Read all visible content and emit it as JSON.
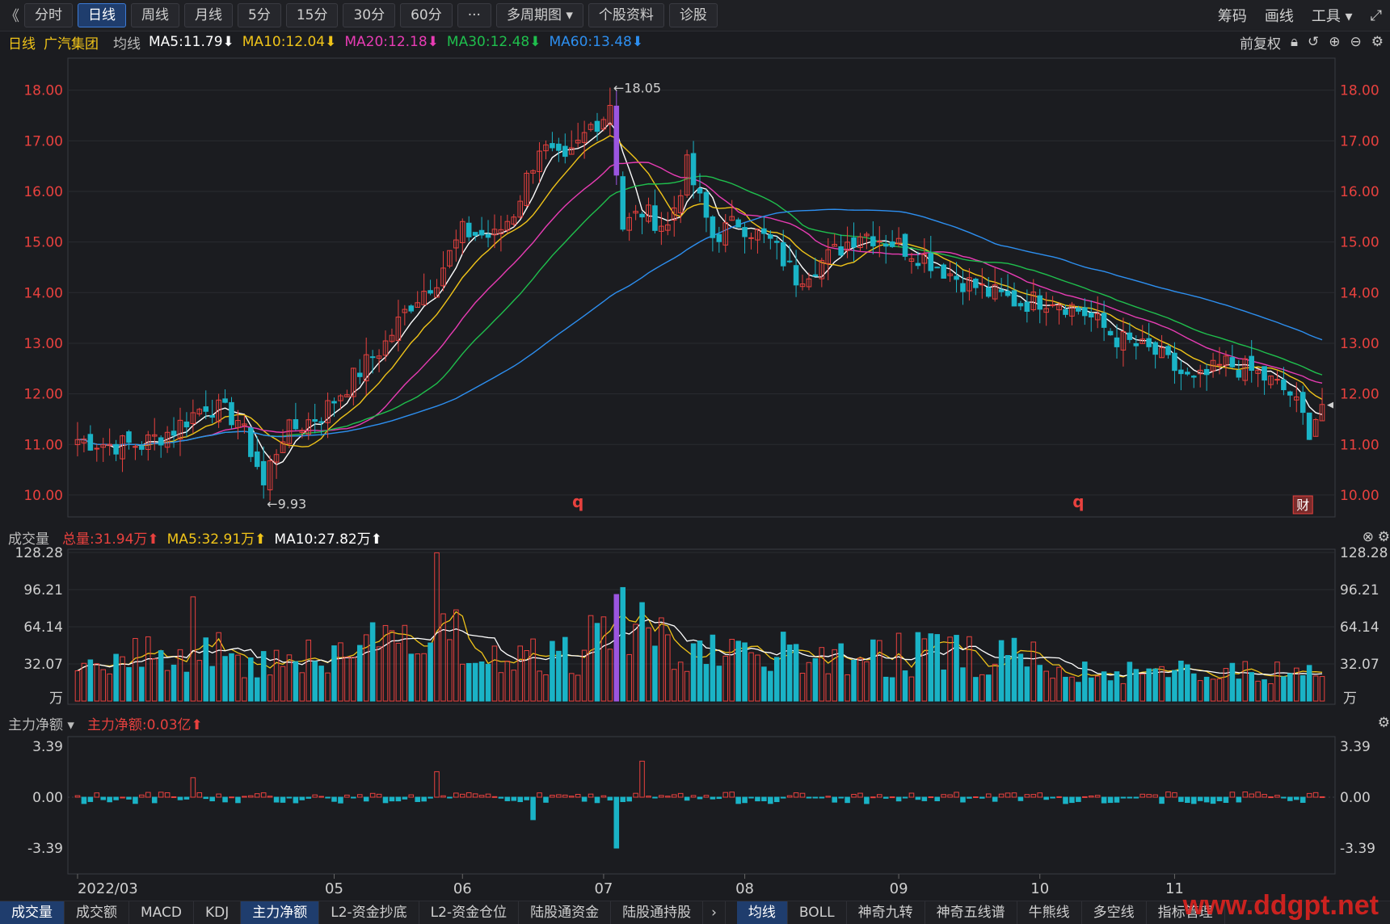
{
  "toolbar": {
    "back": "《",
    "items": [
      "分时",
      "日线",
      "周线",
      "月线",
      "5分",
      "15分",
      "30分",
      "60分",
      "···",
      "多周期图 ▾",
      "个股资料",
      "诊股"
    ],
    "active_index": 1,
    "right": [
      "筹码",
      "画线",
      "工具 ▾",
      "⤢"
    ]
  },
  "ma_bar": {
    "period": "日线",
    "stock": "广汽集团",
    "label": "均线",
    "ma5": "MA5:11.79⬇",
    "ma10": "MA10:12.04⬇",
    "ma20": "MA20:12.18⬇",
    "ma30": "MA30:12.48⬇",
    "ma60": "MA60:13.48⬇",
    "adjust": "前复权"
  },
  "volume_bar": {
    "label": "成交量",
    "total": "总量:31.94万⬆",
    "ma5": "MA5:32.91万⬆",
    "ma10": "MA10:27.82万⬆"
  },
  "flow_bar": {
    "label": "主力净额 ▾",
    "value": "主力净额:0.03亿⬆"
  },
  "bottom_tabs_left": [
    "成交量",
    "成交额",
    "MACD",
    "KDJ",
    "主力净额",
    "L2-资金抄底",
    "L2-资金仓位",
    "陆股通资金",
    "陆股通持股"
  ],
  "bottom_tabs_right": [
    "均线",
    "BOLL",
    "神奇九转",
    "神奇五线谱",
    "牛熊线",
    "多空线",
    "指标管理"
  ],
  "watermark": "www.ddgpt.net",
  "colors": {
    "up": "#e8413e",
    "down": "#1ab3c6",
    "ma5": "#ffffff",
    "ma10": "#f0c419",
    "ma20": "#e83cb4",
    "ma30": "#1fbf4d",
    "ma60": "#2d8ff0",
    "accent": "#3d7bd6",
    "highlight_bar": "#9b55e0"
  },
  "chart_data": {
    "type": "candlestick",
    "price_axis": {
      "ticks": [
        18.0,
        17.0,
        16.0,
        15.0,
        14.0,
        13.0,
        12.0,
        11.0,
        10.0
      ],
      "ylim": [
        9.6,
        18.25
      ]
    },
    "x_labels": [
      "2022/03",
      "05",
      "06",
      "07",
      "08",
      "09",
      "10",
      "11"
    ],
    "annotations": {
      "high": "←18.05",
      "low": "←9.93",
      "markers": [
        "q",
        "q",
        "财"
      ]
    },
    "key_points": {
      "high": 18.05,
      "low": 9.93,
      "last_close": 11.79
    },
    "price_anchors": [
      [
        0,
        11.1
      ],
      [
        5,
        11.0
      ],
      [
        10,
        11.0
      ],
      [
        15,
        11.3
      ],
      [
        20,
        11.8
      ],
      [
        25,
        11.5
      ],
      [
        29,
        10.3
      ],
      [
        32,
        11.2
      ],
      [
        38,
        11.6
      ],
      [
        45,
        12.6
      ],
      [
        48,
        13.0
      ],
      [
        52,
        13.8
      ],
      [
        56,
        14.3
      ],
      [
        60,
        15.2
      ],
      [
        65,
        15.1
      ],
      [
        68,
        15.6
      ],
      [
        72,
        16.9
      ],
      [
        76,
        16.5
      ],
      [
        80,
        17.3
      ],
      [
        83,
        17.6
      ],
      [
        85,
        15.3
      ],
      [
        88,
        15.6
      ],
      [
        92,
        15.3
      ],
      [
        95,
        16.5
      ],
      [
        99,
        15.1
      ],
      [
        103,
        15.4
      ],
      [
        108,
        15.0
      ],
      [
        112,
        14.3
      ],
      [
        117,
        14.7
      ],
      [
        122,
        15.2
      ],
      [
        127,
        15.0
      ],
      [
        132,
        14.7
      ],
      [
        137,
        14.3
      ],
      [
        142,
        14.0
      ],
      [
        147,
        13.8
      ],
      [
        152,
        13.9
      ],
      [
        157,
        13.6
      ],
      [
        162,
        13.1
      ],
      [
        168,
        12.8
      ],
      [
        174,
        12.2
      ],
      [
        179,
        12.6
      ],
      [
        184,
        12.4
      ],
      [
        189,
        12.0
      ],
      [
        192,
        11.3
      ],
      [
        194,
        11.8
      ]
    ],
    "candle_count": 195,
    "volume_axis": {
      "ticks": [
        128.28,
        96.21,
        64.14,
        32.07
      ],
      "unit": "万",
      "ylim": [
        0,
        128.28
      ]
    },
    "flow_axis": {
      "ticks": [
        3.39,
        0.0,
        -3.39
      ],
      "ylim": [
        -3.39,
        3.39
      ]
    },
    "series": [
      {
        "name": "MA5",
        "value": 11.79
      },
      {
        "name": "MA10",
        "value": 12.04
      },
      {
        "name": "MA20",
        "value": 12.18
      },
      {
        "name": "MA30",
        "value": 12.48
      },
      {
        "name": "MA60",
        "value": 13.48
      }
    ],
    "volume_series": [
      {
        "name": "总量",
        "value": 31.94
      },
      {
        "name": "MA5",
        "value": 32.91
      },
      {
        "name": "MA10",
        "value": 27.82
      }
    ],
    "net_flow_latest": 0.03
  }
}
